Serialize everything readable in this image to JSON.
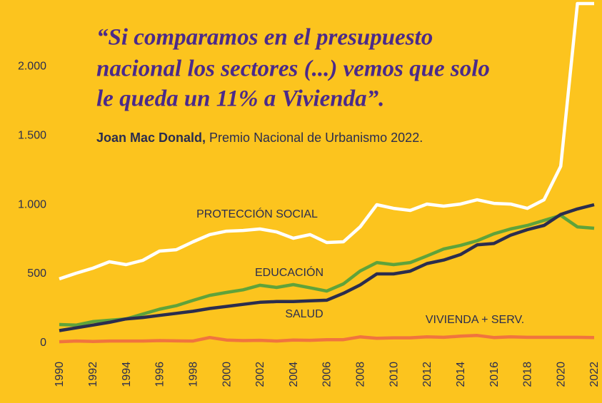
{
  "chart_data": {
    "type": "line",
    "quote_lines": [
      "“Si comparamos en el presupuesto",
      "nacional los sectores (...) vemos que solo",
      "le queda un 11% a Vivienda”."
    ],
    "author_name": "Joan Mac Donald,",
    "author_role": "Premio Nacional de Urbanismo 2022.",
    "x": [
      1990,
      1991,
      1992,
      1993,
      1994,
      1995,
      1996,
      1997,
      1998,
      1999,
      2000,
      2001,
      2002,
      2003,
      2004,
      2005,
      2006,
      2007,
      2008,
      2009,
      2010,
      2011,
      2012,
      2013,
      2014,
      2015,
      2016,
      2017,
      2018,
      2019,
      2020,
      2021,
      2022
    ],
    "xlim": [
      1990,
      2022
    ],
    "xticks": [
      1990,
      1992,
      1994,
      1996,
      1998,
      2000,
      2002,
      2004,
      2006,
      2008,
      2010,
      2012,
      2014,
      2016,
      2018,
      2020,
      2022
    ],
    "ylim": [
      0,
      2480
    ],
    "yticks": [
      0,
      500,
      {
        "value": 1000,
        "label": "1.000"
      },
      {
        "value": 1500,
        "label": "1.500"
      },
      {
        "value": 2000,
        "label": "2.000"
      }
    ],
    "series": [
      {
        "name": "PROTECCIÓN SOCIAL",
        "color": "#ffffff",
        "values": [
          464,
          505,
          541,
          588,
          567,
          598,
          665,
          675,
          732,
          784,
          809,
          814,
          825,
          804,
          758,
          784,
          727,
          732,
          840,
          1000,
          974,
          959,
          1005,
          990,
          1005,
          1036,
          1010,
          1005,
          974,
          1036,
          1278,
          2454,
          2454
        ]
      },
      {
        "name": "EDUCACIÓN",
        "color": "#5fa33a",
        "values": [
          134,
          130,
          155,
          165,
          175,
          210,
          245,
          270,
          309,
          345,
          366,
          385,
          418,
          402,
          423,
          400,
          376,
          428,
          521,
          582,
          567,
          582,
          630,
          680,
          706,
          740,
          790,
          825,
          850,
          887,
          923,
          840,
          830
        ]
      },
      {
        "name": "SALUD",
        "color": "#2b2d4e",
        "values": [
          90,
          110,
          130,
          150,
          175,
          185,
          200,
          215,
          230,
          250,
          265,
          280,
          295,
          300,
          300,
          305,
          310,
          360,
          420,
          500,
          500,
          520,
          575,
          600,
          640,
          710,
          720,
          780,
          820,
          850,
          930,
          970,
          1000
        ]
      },
      {
        "name": "VIVIENDA + SERV.",
        "color": "#f0743e",
        "values": [
          10,
          15,
          12,
          15,
          15,
          15,
          18,
          16,
          15,
          40,
          22,
          18,
          20,
          15,
          22,
          20,
          25,
          25,
          45,
          35,
          38,
          38,
          45,
          42,
          50,
          55,
          40,
          45,
          42,
          42,
          42,
          42,
          40
        ]
      }
    ]
  }
}
